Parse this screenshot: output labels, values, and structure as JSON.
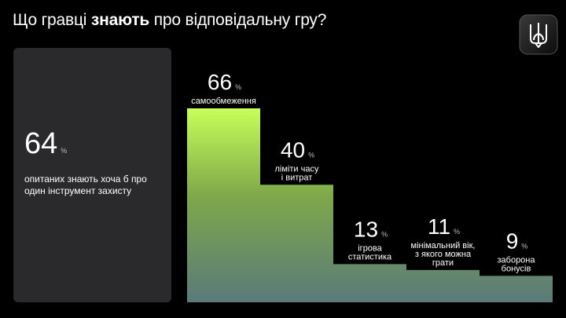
{
  "header": {
    "title_pre": "Що гравці ",
    "title_bold": "знають",
    "title_post": " про відповідальну гру?"
  },
  "logo": {
    "icon": "trident-icon",
    "bg": "#1c1c1e"
  },
  "summary": {
    "value": "64",
    "unit": "%",
    "description": "опитаних знають хоча б про один інструмент захисту"
  },
  "chart_data": {
    "type": "bar",
    "unit": "%",
    "ylim": [
      0,
      66
    ],
    "grid": false,
    "legend": "none",
    "colors": {
      "top": "#c8ff5a",
      "bottom": "#5a7a7a"
    },
    "categories": [
      [
        "самообмеження"
      ],
      [
        "ліміти часу",
        "і витрат"
      ],
      [
        "ігрова",
        "статистика"
      ],
      [
        "мінімальний вік,",
        "з якого можна",
        "грати"
      ],
      [
        "заборона",
        "бонусів"
      ]
    ],
    "values": [
      66,
      40,
      13,
      11,
      9
    ]
  }
}
